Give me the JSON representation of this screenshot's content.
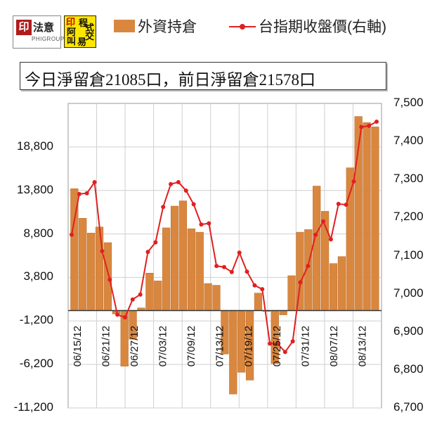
{
  "header": {
    "logo1_brand": "法意",
    "logo1_mark": "印",
    "logo1_sub": "PHIGROUP",
    "logo2_chars": [
      "阿",
      "程",
      "叫",
      "式",
      "交",
      "易"
    ],
    "logo2_mark": "印"
  },
  "legend": {
    "bar_label": "外資持倉",
    "line_label": "台指期收盤價(右軸)"
  },
  "infobox": {
    "text": "今日淨留倉21085口，前日淨留倉21578口"
  },
  "colors": {
    "bar": "#d9873f",
    "bar_edge": "#b86a27",
    "line": "#e02020",
    "plot_bg": "#ffffff",
    "grid": "#cfcfcf"
  },
  "chart_data": {
    "type": "bar",
    "title": "",
    "x_tick_labels": [
      "06/15/12",
      "06/21/12",
      "06/27/12",
      "07/03/12",
      "07/09/12",
      "07/13/12",
      "07/19/12",
      "07/25/12",
      "07/31/12",
      "08/07/12",
      "08/13/12"
    ],
    "y_left_ticks": [
      "18,800",
      "13,800",
      "8,800",
      "3,800",
      "-1,200",
      "-6,200",
      "-11,200"
    ],
    "y_right_ticks": [
      "7,500",
      "7,400",
      "7,300",
      "7,200",
      "7,100",
      "7,000",
      "6,900",
      "6,800",
      "6,700"
    ],
    "ylim_left": [
      -11200,
      23800
    ],
    "ylim_right": [
      6700,
      7500
    ],
    "grid": true,
    "series": [
      {
        "name": "外資持倉",
        "type": "bar",
        "axis": "left",
        "values": [
          14000,
          10600,
          8900,
          9600,
          7800,
          -400,
          -6400,
          -3300,
          300,
          4300,
          3400,
          9500,
          12000,
          12600,
          9400,
          9000,
          3100,
          2900,
          -5000,
          -9600,
          -7100,
          -8000,
          2000,
          -100,
          -6100,
          -500,
          4000,
          9000,
          9300,
          14300,
          11400,
          5400,
          6200,
          16400,
          22300,
          21600,
          21100
        ]
      },
      {
        "name": "台指期收盤價(右軸)",
        "type": "line",
        "axis": "right",
        "values": [
          7155,
          7262,
          7264,
          7293,
          7112,
          7037,
          6945,
          6938,
          6985,
          6998,
          7110,
          7135,
          7228,
          7288,
          7293,
          7271,
          7235,
          7182,
          7185,
          7073,
          7070,
          7057,
          7108,
          7058,
          7022,
          7012,
          6869,
          6869,
          6847,
          6875,
          7030,
          7073,
          7155,
          7190,
          7143,
          7236,
          7234,
          7295,
          7438,
          7441,
          7452
        ]
      }
    ]
  }
}
